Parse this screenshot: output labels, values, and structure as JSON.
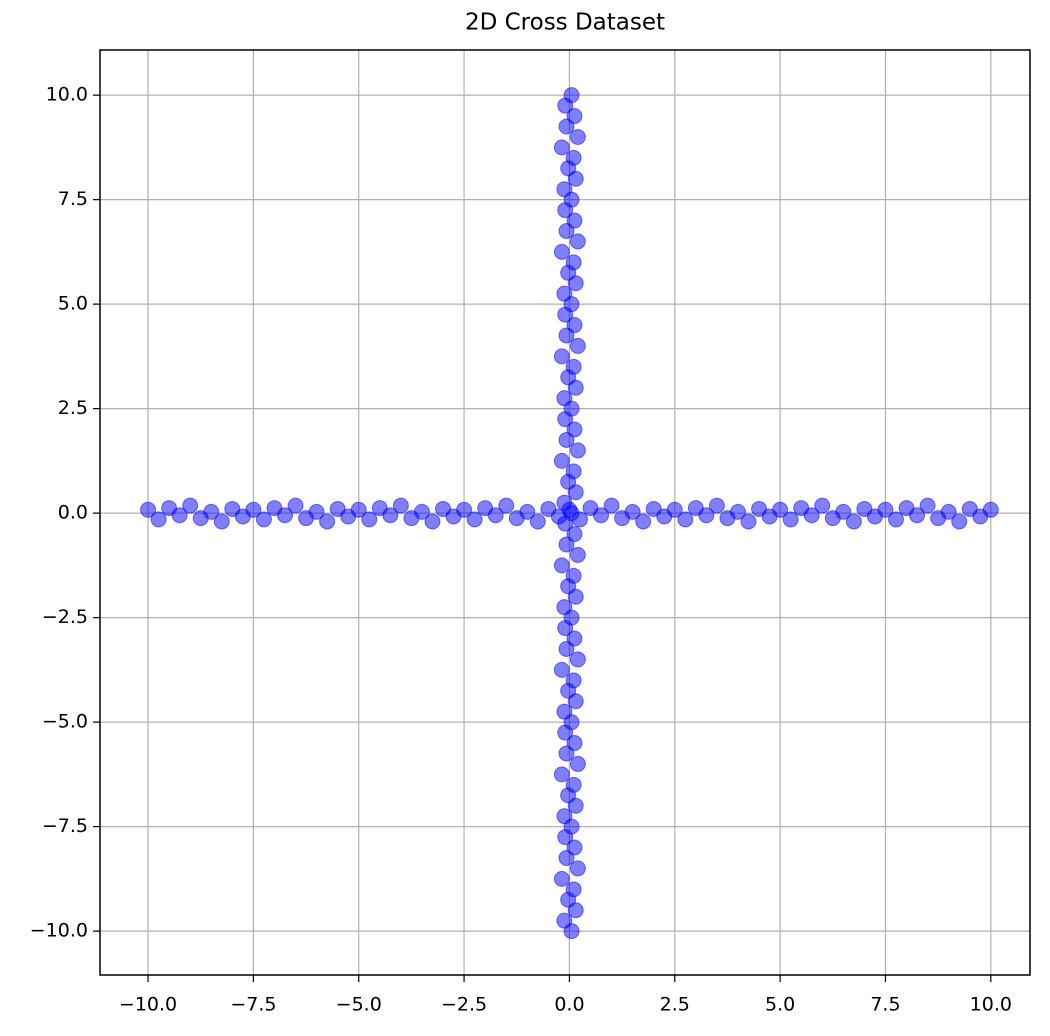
{
  "chart_data": {
    "type": "scatter",
    "title": "2D Cross Dataset",
    "xlim": [
      -11.14,
      10.93
    ],
    "ylim": [
      -11.05,
      11.08
    ],
    "grid": true,
    "alpha": 0.5,
    "xticks": [
      {
        "value": -10,
        "label": "−10.0"
      },
      {
        "value": -7.5,
        "label": "−7.5"
      },
      {
        "value": -5,
        "label": "−5.0"
      },
      {
        "value": -2.5,
        "label": "−2.5"
      },
      {
        "value": 0,
        "label": "0.0"
      },
      {
        "value": 2.5,
        "label": "2.5"
      },
      {
        "value": 5,
        "label": "5.0"
      },
      {
        "value": 7.5,
        "label": "7.5"
      },
      {
        "value": 10,
        "label": "10.0"
      }
    ],
    "yticks": [
      {
        "value": -10,
        "label": "−10.0"
      },
      {
        "value": -7.5,
        "label": "−7.5"
      },
      {
        "value": -5,
        "label": "−5.0"
      },
      {
        "value": -2.5,
        "label": "−2.5"
      },
      {
        "value": 0,
        "label": "0.0"
      },
      {
        "value": 2.5,
        "label": "2.5"
      },
      {
        "value": 5,
        "label": "5.0"
      },
      {
        "value": 7.5,
        "label": "7.5"
      },
      {
        "value": 10,
        "label": "10.0"
      }
    ],
    "series": [
      {
        "color": "#0000ff",
        "x": [
          -10,
          -9.75,
          -9.5,
          -9.25,
          -9,
          -8.75,
          -8.5,
          -8.25,
          -8,
          -7.75,
          -7.5,
          -7.25,
          -7,
          -6.75,
          -6.5,
          -6.25,
          -6,
          -5.75,
          -5.5,
          -5.25,
          -5,
          -4.75,
          -4.5,
          -4.25,
          -4,
          -3.75,
          -3.5,
          -3.25,
          -3,
          -2.75,
          -2.5,
          -2.25,
          -2,
          -1.75,
          -1.5,
          -1.25,
          -1,
          -0.75,
          -0.5,
          -0.25,
          0,
          0.25,
          0.5,
          0.75,
          1,
          1.25,
          1.5,
          1.75,
          2,
          2.25,
          2.5,
          2.75,
          3,
          3.25,
          3.5,
          3.75,
          4,
          4.25,
          4.5,
          4.75,
          5,
          5.25,
          5.5,
          5.75,
          6,
          6.25,
          6.5,
          6.75,
          7,
          7.25,
          7.5,
          7.75,
          8,
          8.25,
          8.5,
          8.75,
          9,
          9.25,
          9.5,
          9.75,
          10
        ],
        "y": [
          0.08,
          -0.15,
          0.12,
          -0.05,
          0.18,
          -0.12,
          0.03,
          -0.2,
          0.1,
          -0.08,
          0.08,
          -0.15,
          0.12,
          -0.05,
          0.18,
          -0.12,
          0.03,
          -0.2,
          0.1,
          -0.08,
          0.08,
          -0.15,
          0.12,
          -0.05,
          0.18,
          -0.12,
          0.03,
          -0.2,
          0.1,
          -0.08,
          0.08,
          -0.15,
          0.12,
          -0.05,
          0.18,
          -0.12,
          0.03,
          -0.2,
          0.1,
          -0.08,
          0.08,
          -0.15,
          0.12,
          -0.05,
          0.18,
          -0.12,
          0.03,
          -0.2,
          0.1,
          -0.08,
          0.08,
          -0.15,
          0.12,
          -0.05,
          0.18,
          -0.12,
          0.03,
          -0.2,
          0.1,
          -0.08,
          0.08,
          -0.15,
          0.12,
          -0.05,
          0.18,
          -0.12,
          0.03,
          -0.2,
          0.1,
          -0.08,
          0.08,
          -0.15,
          0.12,
          -0.05,
          0.18,
          -0.12,
          0.03,
          -0.2,
          0.1,
          -0.08,
          0.08
        ]
      },
      {
        "color": "#0000ff",
        "x": [
          0.05,
          -0.12,
          0.15,
          -0.03,
          0.1,
          -0.18,
          0.2,
          -0.07,
          0.12,
          -0.1,
          0.05,
          -0.12,
          0.15,
          -0.03,
          0.1,
          -0.18,
          0.2,
          -0.07,
          0.12,
          -0.1,
          0.05,
          -0.12,
          0.15,
          -0.03,
          0.1,
          -0.18,
          0.2,
          -0.07,
          0.12,
          -0.1,
          0.05,
          -0.12,
          0.15,
          -0.03,
          0.1,
          -0.18,
          0.2,
          -0.07,
          0.12,
          -0.1,
          0.05,
          -0.12,
          0.15,
          -0.03,
          0.1,
          -0.18,
          0.2,
          -0.07,
          0.12,
          -0.1,
          0.05,
          -0.12,
          0.15,
          -0.03,
          0.1,
          -0.18,
          0.2,
          -0.07,
          0.12,
          -0.1,
          0.05,
          -0.12,
          0.15,
          -0.03,
          0.1,
          -0.18,
          0.2,
          -0.07,
          0.12,
          -0.1,
          0.05,
          -0.12,
          0.15,
          -0.03,
          0.1,
          -0.18,
          0.2,
          -0.07,
          0.12,
          -0.1,
          0.05
        ],
        "y": [
          -10,
          -9.75,
          -9.5,
          -9.25,
          -9,
          -8.75,
          -8.5,
          -8.25,
          -8,
          -7.75,
          -7.5,
          -7.25,
          -7,
          -6.75,
          -6.5,
          -6.25,
          -6,
          -5.75,
          -5.5,
          -5.25,
          -5,
          -4.75,
          -4.5,
          -4.25,
          -4,
          -3.75,
          -3.5,
          -3.25,
          -3,
          -2.75,
          -2.5,
          -2.25,
          -2,
          -1.75,
          -1.5,
          -1.25,
          -1,
          -0.75,
          -0.5,
          -0.25,
          0,
          0.25,
          0.5,
          0.75,
          1,
          1.25,
          1.5,
          1.75,
          2,
          2.25,
          2.5,
          2.75,
          3,
          3.25,
          3.5,
          3.75,
          4,
          4.25,
          4.5,
          4.75,
          5,
          5.25,
          5.5,
          5.75,
          6,
          6.25,
          6.5,
          6.75,
          7,
          7.25,
          7.5,
          7.75,
          8,
          8.25,
          8.5,
          8.75,
          9,
          9.25,
          9.5,
          9.75,
          10
        ]
      }
    ]
  }
}
